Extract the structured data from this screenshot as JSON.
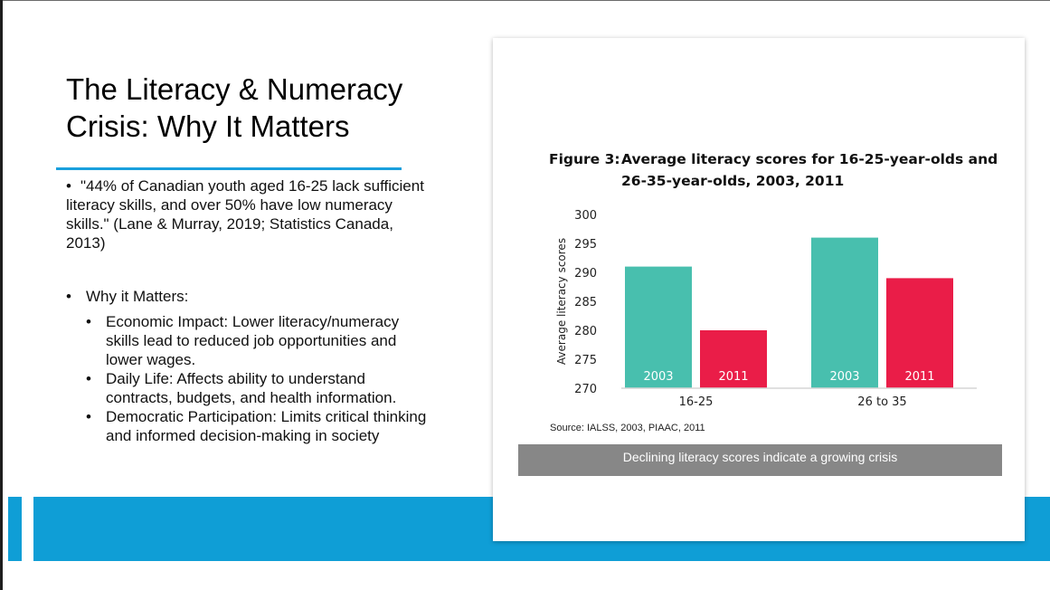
{
  "slide": {
    "title": "The Literacy & Numeracy Crisis: Why It Matters",
    "bullets": {
      "quote": "\"44% of Canadian youth aged 16-25 lack sufficient literacy skills, and over 50% have low numeracy skills.\" (Lane & Murray, 2019; Statistics Canada, 2013)",
      "why_heading": "Why it Matters:",
      "sub_items": [
        "Economic Impact: Lower literacy/numeracy skills lead to reduced job opportunities and lower wages.",
        "Daily Life: Affects ability to understand contracts, budgets, and health information.",
        "Democratic Participation: Limits critical thinking and informed decision-making in society"
      ]
    },
    "bullet_glyph": "•"
  },
  "figure": {
    "title_lead": "Figure 3:",
    "title_rest": "Average literacy scores for 16-25-year-olds and 26-35-year-olds, 2003, 2011",
    "source": "Source: IALSS, 2003, PIAAC, 2011",
    "caption": "Declining literacy scores indicate a growing crisis"
  },
  "chart_data": {
    "type": "bar",
    "title": "Average literacy scores for 16-25-year-olds and 26-35-year-olds, 2003, 2011",
    "ylabel": "Average literacy scores",
    "xlabel": "",
    "categories": [
      "16-25",
      "26 to 35"
    ],
    "series": [
      {
        "name": "2003",
        "values": [
          291,
          296
        ],
        "color": "#48bfae"
      },
      {
        "name": "2011",
        "values": [
          280,
          289
        ],
        "color": "#ea1d48"
      }
    ],
    "ylim": [
      270,
      300
    ],
    "yticks": [
      270,
      275,
      280,
      285,
      290,
      295,
      300
    ],
    "grid": false,
    "legend": "none (series names shown inside bars)"
  },
  "colors": {
    "accent_blue": "#0f9ed6",
    "rule_blue": "#1a9fdd",
    "caption_gray": "#878787"
  }
}
